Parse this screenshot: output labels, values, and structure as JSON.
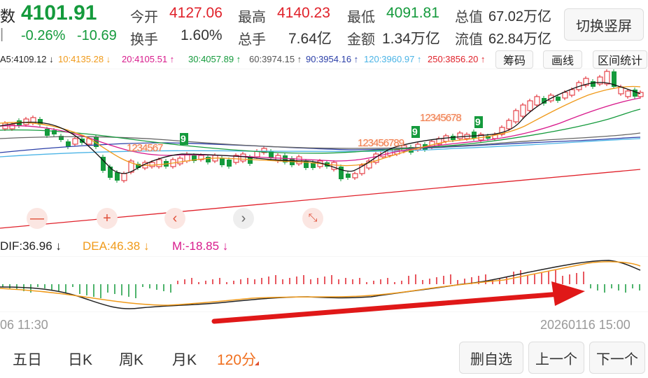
{
  "header": {
    "index_title_partial": "数",
    "price": "4101.91",
    "change_pct": "-0.26%",
    "change_abs": "-10.69",
    "edge_mark": "|",
    "open_label": "今开",
    "open_value": "4127.06",
    "high_label": "最高",
    "high_value": "4140.23",
    "low_label": "最低",
    "low_value": "4091.81",
    "total_mv_label": "总值",
    "total_mv_value": "67.02万亿",
    "turnover_label": "换手",
    "turnover_value": "1.60%",
    "volume_label": "总手",
    "volume_value": "7.64亿",
    "amount_label": "金额",
    "amount_value": "1.34万亿",
    "float_mv_label": "流值",
    "float_mv_value": "62.84万亿",
    "switch_button": "切换竖屏"
  },
  "ma_bar": {
    "ma5": "A5:4109.12 ↓",
    "ma10": "10:4135.28 ↓",
    "ma20": "20:4105.51 ↑",
    "ma30": "30:4057.89 ↑",
    "ma60": "60:3974.15 ↑",
    "ma90": "90:3954.16 ↑",
    "ma120": "120:3960.97 ↑",
    "ma250": "250:3856.20 ↑"
  },
  "tools": {
    "chips": "筹码",
    "draw": "画线",
    "range": "区间统计"
  },
  "controls": {
    "zoom_out": "—",
    "zoom_in": "+",
    "prev": "‹",
    "next": "›",
    "collapse": "⤡"
  },
  "macd": {
    "dif": "DIF:36.96 ↓",
    "dea": "DEA:46.38 ↓",
    "m": "M:-18.85 ↓"
  },
  "time_axis": {
    "left": "06 11:30",
    "right": "20260116 15:00"
  },
  "tabs": [
    "五日",
    "日K",
    "周K",
    "月K",
    "120分"
  ],
  "bottom_buttons": {
    "delete": "删自选",
    "prev": "上一个",
    "next": "下一个"
  },
  "td_counts": {
    "seq1_digits": "1234567",
    "seq1_last": "9",
    "seq2_digits": "123456789",
    "seq2_mid": "9",
    "seq3_digits": "12345678",
    "seq3_last": "9"
  },
  "colors": {
    "up": "#e0212a",
    "down": "#149a3c",
    "dea": "#f09a1a",
    "dif": "#222222"
  }
}
